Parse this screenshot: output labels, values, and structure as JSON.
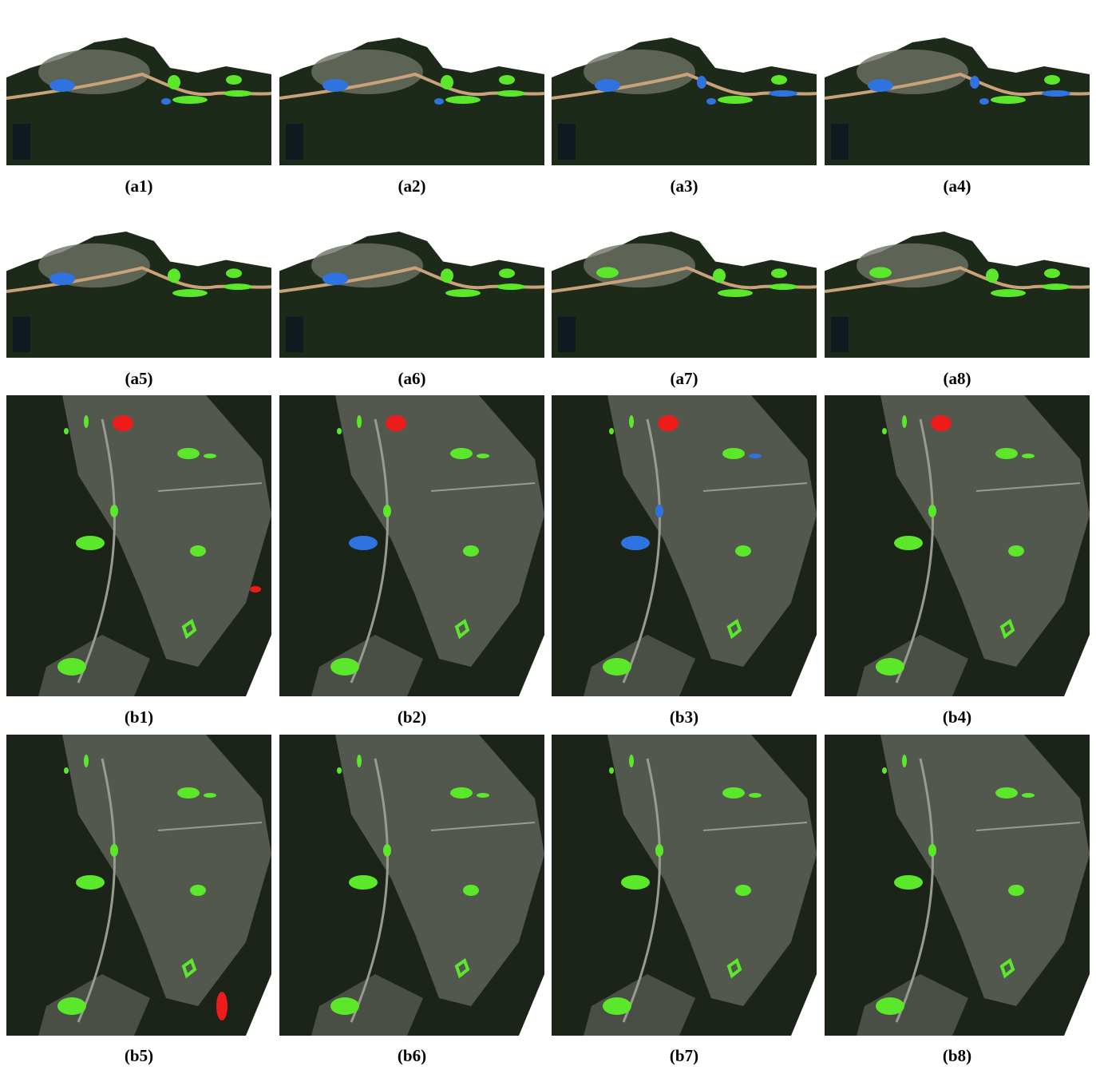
{
  "panels": [
    {
      "label": "(a1)"
    },
    {
      "label": "(a2)"
    },
    {
      "label": "(a3)"
    },
    {
      "label": "(a4)"
    },
    {
      "label": "(a5)"
    },
    {
      "label": "(a6)"
    },
    {
      "label": "(a7)"
    },
    {
      "label": "(a8)"
    },
    {
      "label": "(b1)"
    },
    {
      "label": "(b2)"
    },
    {
      "label": "(b3)"
    },
    {
      "label": "(b4)"
    },
    {
      "label": "(b5)"
    },
    {
      "label": "(b6)"
    },
    {
      "label": "(b7)"
    },
    {
      "label": "(b8)"
    }
  ]
}
